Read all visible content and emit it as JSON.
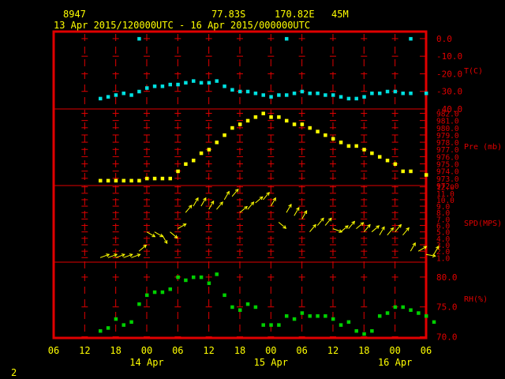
{
  "header": {
    "station_id": "8947",
    "latitude": "77.83S",
    "longitude": "170.82E",
    "elevation": "45M",
    "time_range": "13 Apr 2015/120000UTC - 16 Apr 2015/000000UTC"
  },
  "page_number": "2",
  "colors": {
    "frame": "#e00000",
    "text": "#ffff00",
    "axis_label": "#e00000",
    "temperature": "#00e0e0",
    "pressure": "#ffff00",
    "wind": "#ffff00",
    "humidity": "#00d000"
  },
  "chart_data": {
    "type": "scatter",
    "x_unit": "hours since 13 Apr 2015 06 UTC",
    "x_ticks": [
      "06",
      "12",
      "18",
      "00",
      "06",
      "12",
      "18",
      "00",
      "06",
      "12",
      "18",
      "00",
      "06"
    ],
    "date_labels": [
      {
        "text": "14 Apr",
        "tick_index": 3
      },
      {
        "text": "15 Apr",
        "tick_index": 7
      },
      {
        "text": "16 Apr",
        "tick_index": 11
      }
    ],
    "panels": [
      {
        "name": "temperature",
        "label": "T(C)",
        "ticks": [
          "0.0",
          "-10.0",
          "-20.0",
          "-30.0",
          "-40.0"
        ],
        "tick_values": [
          0,
          -10,
          -20,
          -30,
          -40
        ],
        "ylim": [
          -40,
          4
        ],
        "points": [
          [
            9,
            -34
          ],
          [
            10.5,
            -33
          ],
          [
            12,
            -32
          ],
          [
            13.5,
            -31
          ],
          [
            15,
            -32
          ],
          [
            16.5,
            -30
          ],
          [
            18,
            -28
          ],
          [
            19.5,
            -27
          ],
          [
            21,
            -27
          ],
          [
            22.5,
            -26
          ],
          [
            24,
            -26
          ],
          [
            25.5,
            -25
          ],
          [
            27,
            -24
          ],
          [
            28.5,
            -25
          ],
          [
            30,
            -25
          ],
          [
            31.5,
            -24
          ],
          [
            33,
            -27
          ],
          [
            34.5,
            -29
          ],
          [
            36,
            -30
          ],
          [
            37.5,
            -30
          ],
          [
            39,
            -31
          ],
          [
            40.5,
            -32
          ],
          [
            42,
            -33
          ],
          [
            43.5,
            -32
          ],
          [
            45,
            -32
          ],
          [
            46.5,
            -31
          ],
          [
            48,
            -30
          ],
          [
            49.5,
            -31
          ],
          [
            51,
            -31
          ],
          [
            52.5,
            -32
          ],
          [
            54,
            -32
          ],
          [
            55.5,
            -33
          ],
          [
            57,
            -34
          ],
          [
            58.5,
            -34
          ],
          [
            60,
            -33
          ],
          [
            61.5,
            -31
          ],
          [
            63,
            -31
          ],
          [
            64.5,
            -30
          ],
          [
            66,
            -30
          ],
          [
            67.5,
            -31
          ],
          [
            69,
            -31
          ],
          [
            72,
            -31
          ],
          [
            16.5,
            0
          ],
          [
            45,
            0
          ],
          [
            69,
            0
          ]
        ]
      },
      {
        "name": "pressure",
        "label": "Pre (mb)",
        "ticks": [
          "982.0",
          "981.0",
          "980.0",
          "979.0",
          "978.0",
          "977.0",
          "976.0",
          "975.0",
          "974.0",
          "973.0",
          "972.0"
        ],
        "tick_values": [
          982,
          981,
          980,
          979,
          978,
          977,
          976,
          975,
          974,
          973,
          972
        ],
        "ylim": [
          972,
          982.6
        ],
        "points": [
          [
            9,
            972.7
          ],
          [
            10.5,
            972.7
          ],
          [
            12,
            972.7
          ],
          [
            13.5,
            972.7
          ],
          [
            15,
            972.7
          ],
          [
            16.5,
            972.7
          ],
          [
            18,
            973.0
          ],
          [
            19.5,
            973.0
          ],
          [
            21,
            973.0
          ],
          [
            22.5,
            973.0
          ],
          [
            24,
            974.0
          ],
          [
            25.5,
            975.0
          ],
          [
            27,
            975.5
          ],
          [
            28.5,
            976.5
          ],
          [
            30,
            977.0
          ],
          [
            31.5,
            978.0
          ],
          [
            33,
            979.0
          ],
          [
            34.5,
            980.0
          ],
          [
            36,
            980.5
          ],
          [
            37.5,
            981.0
          ],
          [
            39,
            981.5
          ],
          [
            40.5,
            982.0
          ],
          [
            42,
            981.5
          ],
          [
            43.5,
            981.5
          ],
          [
            45,
            981.0
          ],
          [
            46.5,
            980.5
          ],
          [
            48,
            980.5
          ],
          [
            49.5,
            980.0
          ],
          [
            51,
            979.5
          ],
          [
            52.5,
            979.0
          ],
          [
            54,
            978.5
          ],
          [
            55.5,
            978.0
          ],
          [
            57,
            977.5
          ],
          [
            58.5,
            977.5
          ],
          [
            60,
            977.0
          ],
          [
            61.5,
            976.5
          ],
          [
            63,
            976.0
          ],
          [
            64.5,
            975.5
          ],
          [
            66,
            975.0
          ],
          [
            67.5,
            974.0
          ],
          [
            69,
            974.0
          ],
          [
            72,
            973.5
          ]
        ]
      },
      {
        "name": "wind",
        "label": "SPD(MPS)",
        "ticks": [
          "12.0",
          "11.0",
          "10.0",
          "9.0",
          "8.0",
          "7.0",
          "6.0",
          "5.0",
          "4.0",
          "3.0",
          "2.0",
          "1.0"
        ],
        "tick_values": [
          12,
          11,
          10,
          9,
          8,
          7,
          6,
          5,
          4,
          3,
          2,
          1
        ],
        "ylim": [
          0.3,
          12.2
        ],
        "points": [
          [
            9,
            1.0,
            20
          ],
          [
            10.5,
            1.0,
            20
          ],
          [
            12,
            1.0,
            20
          ],
          [
            13.5,
            1.0,
            20
          ],
          [
            15,
            1.0,
            20
          ],
          [
            16.5,
            2.0,
            40
          ],
          [
            18,
            5.0,
            -30
          ],
          [
            19.5,
            5.0,
            -30
          ],
          [
            21,
            4.5,
            -60
          ],
          [
            22.5,
            5.0,
            -40
          ],
          [
            24,
            5.5,
            30
          ],
          [
            25.5,
            8.0,
            50
          ],
          [
            27,
            9.0,
            60
          ],
          [
            28.5,
            9.0,
            60
          ],
          [
            30,
            8.5,
            60
          ],
          [
            31.5,
            8.5,
            50
          ],
          [
            33,
            10.0,
            60
          ],
          [
            34.5,
            10.5,
            50
          ],
          [
            36,
            8.0,
            40
          ],
          [
            37.5,
            8.5,
            50
          ],
          [
            39,
            9.5,
            40
          ],
          [
            40.5,
            10.0,
            50
          ],
          [
            42,
            9.0,
            60
          ],
          [
            43.5,
            6.5,
            -40
          ],
          [
            45,
            8.0,
            60
          ],
          [
            46.5,
            7.5,
            60
          ],
          [
            48,
            7.0,
            60
          ],
          [
            49.5,
            5.0,
            50
          ],
          [
            51,
            6.0,
            50
          ],
          [
            52.5,
            6.0,
            50
          ],
          [
            54,
            5.5,
            -20
          ],
          [
            55.5,
            5.0,
            40
          ],
          [
            57,
            5.5,
            50
          ],
          [
            58.5,
            5.5,
            40
          ],
          [
            60,
            5.0,
            50
          ],
          [
            61.5,
            5.0,
            40
          ],
          [
            63,
            4.5,
            60
          ],
          [
            64.5,
            4.5,
            50
          ],
          [
            66,
            5.0,
            50
          ],
          [
            67.5,
            4.5,
            50
          ],
          [
            69,
            2.0,
            60
          ],
          [
            70.5,
            2.0,
            30
          ],
          [
            72,
            1.5,
            -10
          ],
          [
            73.5,
            1.5,
            60
          ]
        ]
      },
      {
        "name": "humidity",
        "label": "RH(%)",
        "ticks": [
          "80.0",
          "75.0",
          "70.0"
        ],
        "tick_values": [
          80,
          75,
          70
        ],
        "ylim": [
          69.8,
          82.5
        ],
        "points": [
          [
            9,
            71
          ],
          [
            10.5,
            71.5
          ],
          [
            12,
            73
          ],
          [
            13.5,
            72
          ],
          [
            15,
            72.5
          ],
          [
            16.5,
            75.5
          ],
          [
            18,
            77
          ],
          [
            19.5,
            77.5
          ],
          [
            21,
            77.5
          ],
          [
            22.5,
            78
          ],
          [
            24,
            80
          ],
          [
            25.5,
            79.5
          ],
          [
            27,
            80
          ],
          [
            28.5,
            80
          ],
          [
            30,
            79
          ],
          [
            31.5,
            80.5
          ],
          [
            33,
            77
          ],
          [
            34.5,
            75
          ],
          [
            36,
            74.5
          ],
          [
            37.5,
            75.5
          ],
          [
            39,
            75
          ],
          [
            40.5,
            72
          ],
          [
            42,
            72
          ],
          [
            43.5,
            72
          ],
          [
            45,
            73.5
          ],
          [
            46.5,
            73
          ],
          [
            48,
            74
          ],
          [
            49.5,
            73.5
          ],
          [
            51,
            73.5
          ],
          [
            52.5,
            73.5
          ],
          [
            54,
            73
          ],
          [
            55.5,
            72
          ],
          [
            57,
            72.5
          ],
          [
            58.5,
            71
          ],
          [
            60,
            70.5
          ],
          [
            61.5,
            71
          ],
          [
            63,
            73.5
          ],
          [
            64.5,
            74
          ],
          [
            66,
            75
          ],
          [
            67.5,
            75
          ],
          [
            69,
            74.5
          ],
          [
            70.5,
            74
          ],
          [
            72,
            73.5
          ],
          [
            73.5,
            72.5
          ]
        ]
      }
    ]
  }
}
